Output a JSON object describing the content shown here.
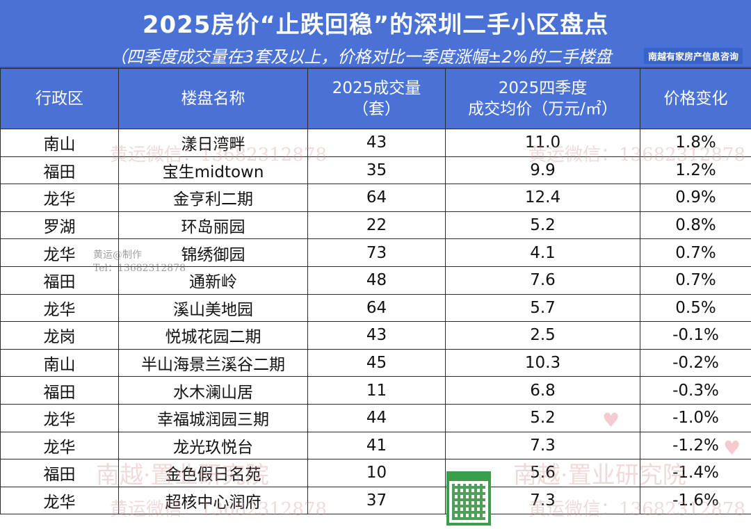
{
  "header": {
    "title": "2025房价“止跌回稳”的深圳二手小区盘点",
    "subtitle": "（四季度成交量在3套及以上，价格对比一季度涨幅±2%的二手楼盘",
    "credit": "南越有家房产信息咨询"
  },
  "table": {
    "columns": [
      {
        "lines": [
          "行政区"
        ]
      },
      {
        "lines": [
          "楼盘名称"
        ]
      },
      {
        "lines": [
          "2025成交量",
          "（套）"
        ]
      },
      {
        "lines": [
          "2025四季度",
          "成交均价（万元/㎡）"
        ]
      },
      {
        "lines": [
          "价格变化"
        ]
      }
    ],
    "rows": [
      [
        "南山",
        "漾日湾畔",
        "43",
        "11.0",
        "1.8%"
      ],
      [
        "福田",
        "宝生midtown",
        "35",
        "9.9",
        "1.2%"
      ],
      [
        "龙华",
        "金亨利二期",
        "64",
        "12.4",
        "0.9%"
      ],
      [
        "罗湖",
        "环岛丽园",
        "22",
        "5.2",
        "0.8%"
      ],
      [
        "龙华",
        "锦绣御园",
        "73",
        "4.1",
        "0.7%"
      ],
      [
        "福田",
        "通新岭",
        "48",
        "7.6",
        "0.7%"
      ],
      [
        "龙华",
        "溪山美地园",
        "64",
        "5.7",
        "0.5%"
      ],
      [
        "龙岗",
        "悦城花园二期",
        "43",
        "2.5",
        "-0.1%"
      ],
      [
        "南山",
        "半山海景兰溪谷二期",
        "45",
        "10.3",
        "-0.2%"
      ],
      [
        "福田",
        "水木澜山居",
        "11",
        "6.8",
        "-0.3%"
      ],
      [
        "龙华",
        "幸福城润园三期",
        "44",
        "5.2",
        "-1.0%"
      ],
      [
        "龙华",
        "龙光玖悦台",
        "41",
        "7.3",
        "-1.2%"
      ],
      [
        "福田",
        "金色假日名苑",
        "10",
        "5.6",
        "-1.4%"
      ],
      [
        "龙华",
        "超核中心润府",
        "37",
        "7.3",
        "-1.6%"
      ]
    ]
  },
  "watermarks": {
    "wechat_1": "黄运微信：13682312878",
    "wechat_2": "黄运微信：13682312878",
    "maker": "黄运@制作",
    "tel": "Tel：13682312878",
    "brand_1": "南越·置业研究院",
    "brand_2": "南越·置业研究院",
    "wechat_3": "黄运微信：13682312878",
    "wechat_4": "黄运微信：13682312878"
  },
  "colors": {
    "header_bg": "#4a72d6",
    "border": "#2a2a2a",
    "qr_green": "#3a9f4a"
  }
}
